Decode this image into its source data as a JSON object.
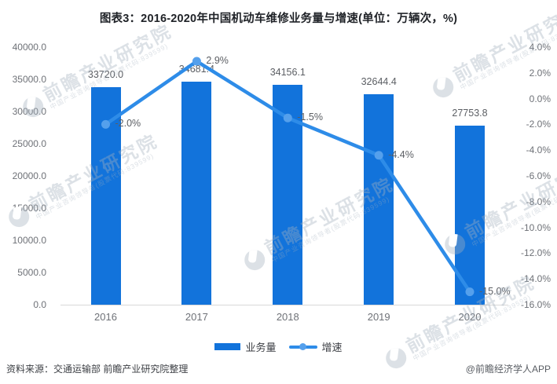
{
  "title": "图表3：2016-2020年中国机动车维修业务量与增速(单位：万辆次，%)",
  "chart_data": {
    "type": "bar",
    "subtype": "bar+line dual-axis",
    "categories": [
      "2016",
      "2017",
      "2018",
      "2019",
      "2020"
    ],
    "series": [
      {
        "name": "业务量",
        "type": "bar",
        "axis": "left",
        "values": [
          33720.0,
          34681.4,
          34156.1,
          32644.4,
          27753.8
        ],
        "value_labels": [
          "33720.0",
          "34681.4",
          "34156.1",
          "32644.4",
          "27753.8"
        ]
      },
      {
        "name": "增速",
        "type": "line",
        "axis": "right",
        "values": [
          -2.0,
          2.9,
          -1.5,
          -4.4,
          -15.0
        ],
        "value_labels": [
          "-2.0%",
          "2.9%",
          "-1.5%",
          "-4.4%",
          "-15.0%"
        ]
      }
    ],
    "left_axis": {
      "min": 0,
      "max": 40000,
      "tick_labels": [
        "40000.0",
        "35000.0",
        "30000.0",
        "25000.0",
        "20000.0",
        "15000.0",
        "10000.0",
        "5000.0",
        "0.0"
      ]
    },
    "right_axis": {
      "min": -16,
      "max": 4,
      "tick_labels": [
        "4.0%",
        "2.0%",
        "0.0%",
        "-2.0%",
        "-4.0%",
        "-6.0%",
        "-8.0%",
        "-10.0%",
        "-12.0%",
        "-14.0%",
        "-16.0%"
      ]
    },
    "legend_position": "bottom",
    "grid": false
  },
  "colors": {
    "bar": "#1273db",
    "line": "#2e8ce8",
    "marker": "#55a0ec",
    "axis_text": "#6e7177",
    "label_text": "#5b5e63",
    "title_text": "#1f2227",
    "baseline": "#d9d9d9",
    "watermark": "rgba(164,175,190,0.38)"
  },
  "footer": {
    "source": "资料来源：交通运输部 前瞻产业研究院整理",
    "credit": "@前瞻经济学人APP"
  },
  "watermark": {
    "big": "前瞻产业研究院",
    "small": "中国产业咨询领导者(股票代码:839599)"
  }
}
